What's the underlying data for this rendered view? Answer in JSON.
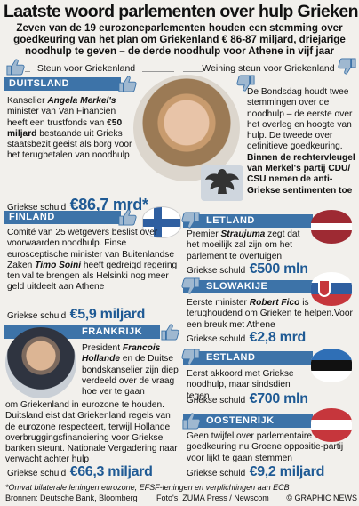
{
  "title": "Laatste woord parlementen over hulp Grieken",
  "subtitle": "Zeven van de 19 eurozoneparlementen houden een stemming over goedkeuring van het plan om Griekenland € 86-87 miljard, driejarige noodhulp te geven – de derde noodhulp voor Athene in vijf jaar",
  "columns": {
    "left": "Steun voor Griekenland",
    "right": "Weining steun voor Griekenland"
  },
  "debt_label": "Griekse schuld",
  "sections": {
    "germany": {
      "name": "DUITSLAND",
      "text_left": [
        "Kanselier ",
        "Angela Merkel's",
        " minister van Van Financiën heeft een trustfonds van ",
        "€50 miljard",
        " bestaande uit Grieks staatsbezit geëist als borg voor het terugbetalen van noodhulp"
      ],
      "text_right": [
        "De Bondsdag houdt twee stemmingen over de noodhulp – de eerste over het overleg en hoogte van hulp. De tweede over definitieve goedkeuring. ",
        "Binnen de rechtervleugel van Merkel's partij CDU/ CSU nemen de anti-Griekse sentimenten toe"
      ],
      "debt": "€86,7 mrd*"
    },
    "finland": {
      "name": "FINLAND",
      "text": [
        "Comité van 25 wetgevers beslist over voorwaarden noodhulp. Finse eurosceptische minister van Buitenlandse Zaken ",
        "Timo Soini",
        " heeft gedreigd regering ten val te brengen als Helsinki nog meer geld uitdeelt aan Athene"
      ],
      "debt": "€5,9 miljard"
    },
    "latvia": {
      "name": "LETLAND",
      "text": [
        "Premier ",
        "Straujuma",
        " zegt dat het moeilijk zal zijn om het parlement te overtuigen"
      ],
      "debt": "€500 mln"
    },
    "slovakia": {
      "name": "SLOWAKIJE",
      "text": [
        "Eerste minister ",
        "Robert Fico",
        " is terughoudend om Grieken te helpen.Voor een breuk met Athene"
      ],
      "debt": "€2,8 mrd"
    },
    "france": {
      "name": "FRANKRIJK",
      "text_right": [
        "President ",
        "Francois Hollande",
        " en de Duitse bondskanselier zijn diep verdeeld over de vraag hoe ver te gaan"
      ],
      "text_full": "om Griekenland in eurozone te houden. Duitsland eist dat Griekenland regels van de eurozone respecteert, terwijl Hollande overbruggingsfinanciering voor Griekse banken steunt. Nationale Vergadering naar verwacht achter hulp",
      "debt": "€66,3 miljard"
    },
    "estonia": {
      "name": "ESTLAND",
      "text": "Eerst akkoord met Griekse noodhulp, maar sindsdien tegen",
      "debt": "€700 mln"
    },
    "austria": {
      "name": "OOSTENRIJK",
      "text": "Geen twijfel over parlementaire goedkeuring nu Groene oppositie-partij voor lijkt te gaan stemmen",
      "debt": "€9,2 miljard"
    }
  },
  "footnote": "*Omvat bilaterale leningen eurozone, EFSF-leningen en verplichtingen aan ECB",
  "sources": "Bronnen: Deutsche Bank, Bloomberg",
  "photo_credit": "Foto's: ZUMA Press / Newscom",
  "copyright": "© GRAPHIC NEWS",
  "colors": {
    "section_bar": "#3d73a8",
    "value_blue": "#1f5a94",
    "thumb_fill": "#9fb8d0",
    "flag_latvia": "#9e2a33",
    "flag_estonia_blue": "#2f6fb6"
  },
  "icons": [
    "thumbs-up-icon",
    "thumbs-down-icon",
    "bundestag-eagle-icon",
    "finland-flag",
    "latvia-flag",
    "slovakia-flag",
    "estonia-flag",
    "austria-flag"
  ]
}
